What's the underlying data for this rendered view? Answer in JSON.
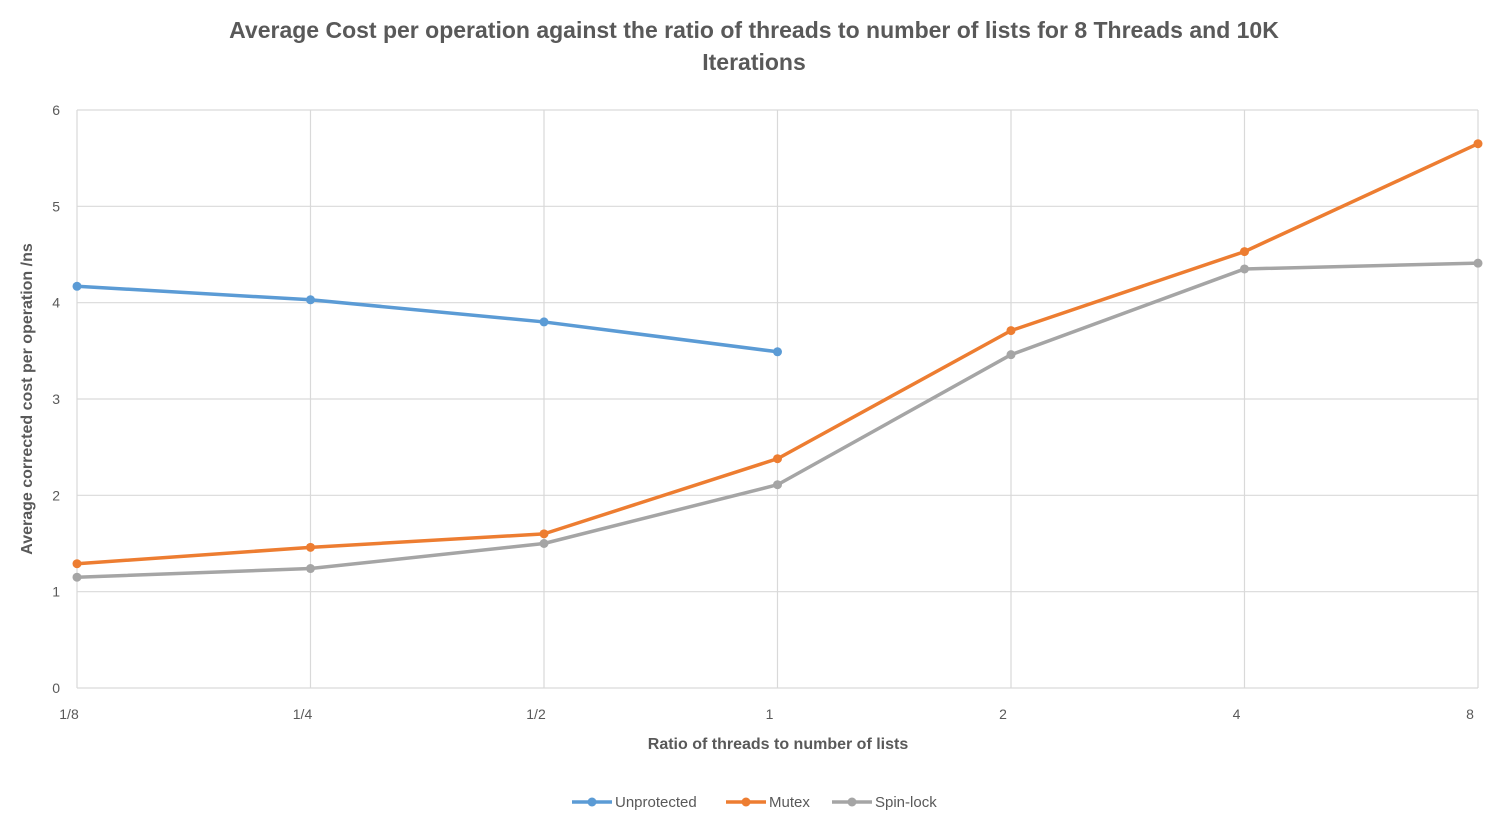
{
  "chart_data": {
    "type": "line",
    "title_line1": "Average Cost per operation against the ratio of threads to number of lists for 8 Threads and 10K",
    "title_line2": "Iterations",
    "xlabel": "Ratio of threads to number of lists",
    "ylabel": "Average corrected cost per operation /ns",
    "categories": [
      "1/8",
      "1/4",
      "1/2",
      "1",
      "2",
      "4",
      "8"
    ],
    "ylim": [
      0,
      6
    ],
    "yticks": [
      0,
      1,
      2,
      3,
      4,
      5,
      6
    ],
    "grid": true,
    "legend_position": "bottom",
    "series": [
      {
        "name": "Unprotected",
        "color": "#5b9bd5",
        "values": [
          4.17,
          4.03,
          3.8,
          3.49,
          null,
          null,
          null
        ]
      },
      {
        "name": "Mutex",
        "color": "#ed7d31",
        "values": [
          1.29,
          1.46,
          1.6,
          2.38,
          3.71,
          4.53,
          5.65
        ]
      },
      {
        "name": "Spin-lock",
        "color": "#a5a5a5",
        "values": [
          1.15,
          1.24,
          1.5,
          2.11,
          3.46,
          4.35,
          4.41
        ]
      }
    ]
  }
}
